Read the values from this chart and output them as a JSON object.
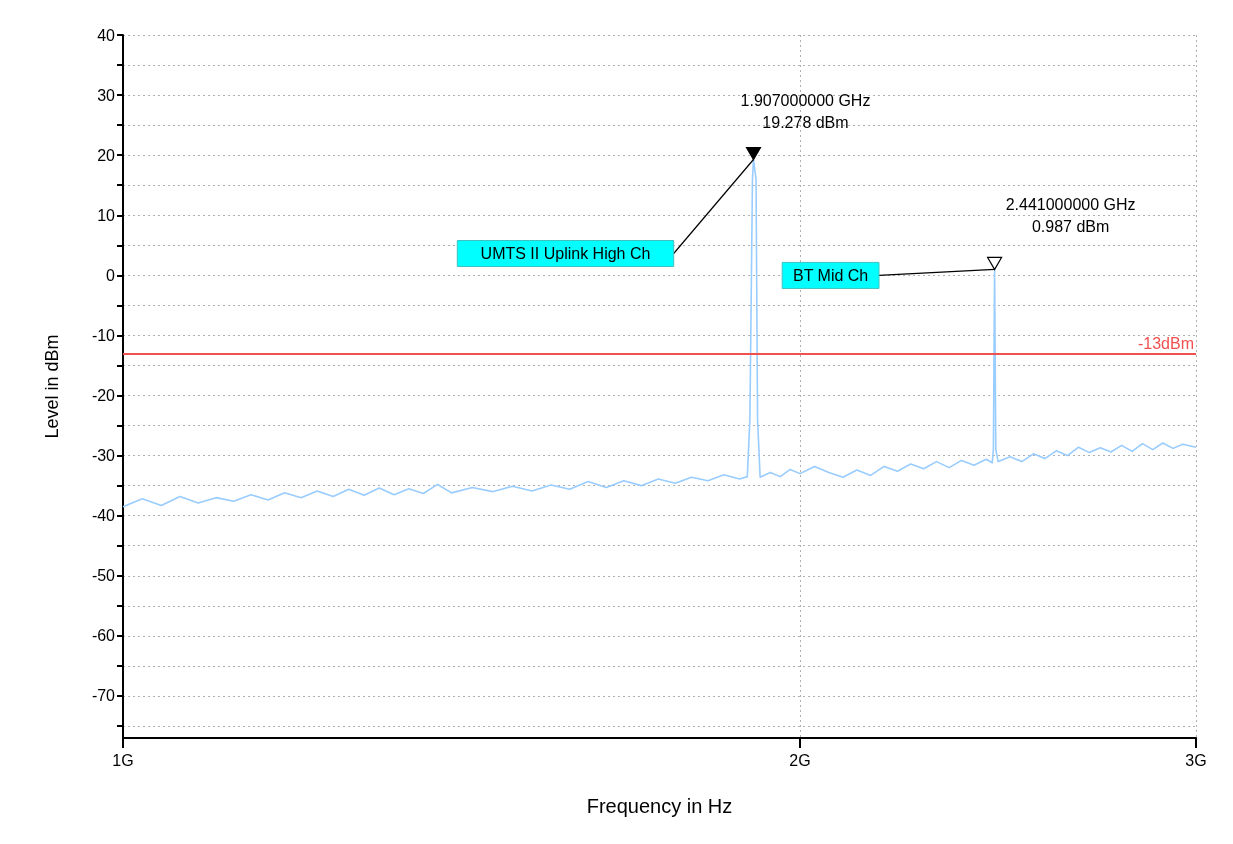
{
  "chart_data": {
    "type": "line",
    "xlabel": "Frequency in Hz",
    "ylabel": "Level in dBm",
    "log": "x",
    "xlim": [
      1,
      3
    ],
    "xticks": [
      {
        "value": 1,
        "label": "1G"
      },
      {
        "value": 2,
        "label": "2G"
      },
      {
        "value": 3,
        "label": "3G"
      }
    ],
    "ylim": [
      -77,
      40
    ],
    "yticks": [
      {
        "value": -75,
        "label": null
      },
      -70,
      {
        "value": -65,
        "label": null
      },
      -60,
      {
        "value": -55,
        "label": null
      },
      -50,
      {
        "value": -45,
        "label": null
      },
      -40,
      {
        "value": -35,
        "label": null
      },
      -30,
      {
        "value": -25,
        "label": null
      },
      -20,
      {
        "value": -15,
        "label": null
      },
      -10,
      {
        "value": -5,
        "label": null
      },
      0,
      {
        "value": 5,
        "label": null
      },
      10,
      {
        "value": 15,
        "label": null
      },
      20,
      {
        "value": 25,
        "label": null
      },
      30,
      {
        "value": 35,
        "label": null
      },
      40
    ],
    "grid": true,
    "marker": "none",
    "line_style": "solid",
    "series": [
      {
        "color": "#99ccff",
        "x": [
          1.0,
          1.02,
          1.04,
          1.06,
          1.08,
          1.1,
          1.12,
          1.14,
          1.16,
          1.18,
          1.2,
          1.22,
          1.24,
          1.26,
          1.28,
          1.3,
          1.32,
          1.34,
          1.36,
          1.38,
          1.4,
          1.43,
          1.46,
          1.49,
          1.52,
          1.55,
          1.58,
          1.61,
          1.64,
          1.67,
          1.7,
          1.73,
          1.76,
          1.79,
          1.82,
          1.85,
          1.88,
          1.895,
          1.9,
          1.905,
          1.907,
          1.912,
          1.915,
          1.92,
          1.94,
          1.96,
          1.98,
          2.0,
          2.03,
          2.06,
          2.09,
          2.12,
          2.15,
          2.18,
          2.21,
          2.24,
          2.27,
          2.3,
          2.33,
          2.36,
          2.39,
          2.42,
          2.435,
          2.438,
          2.441,
          2.444,
          2.45,
          2.48,
          2.51,
          2.54,
          2.57,
          2.6,
          2.63,
          2.66,
          2.69,
          2.72,
          2.75,
          2.78,
          2.81,
          2.84,
          2.87,
          2.9,
          2.93,
          2.96,
          3.0
        ],
        "values": [
          -38.5,
          -37.2,
          -38.3,
          -36.8,
          -37.9,
          -37.0,
          -37.6,
          -36.5,
          -37.4,
          -36.2,
          -37.0,
          -35.9,
          -36.8,
          -35.6,
          -36.6,
          -35.4,
          -36.5,
          -35.5,
          -36.3,
          -34.8,
          -36.2,
          -35.3,
          -36.0,
          -35.1,
          -35.9,
          -34.9,
          -35.6,
          -34.3,
          -35.3,
          -34.2,
          -35.0,
          -33.9,
          -34.6,
          -33.6,
          -34.2,
          -33.2,
          -33.9,
          -33.5,
          -24.0,
          16.0,
          19.278,
          16.0,
          -24.0,
          -33.6,
          -32.8,
          -33.5,
          -32.3,
          -33.0,
          -31.8,
          -32.8,
          -33.6,
          -32.4,
          -33.3,
          -31.8,
          -32.6,
          -31.4,
          -32.2,
          -31.0,
          -32.0,
          -30.8,
          -31.6,
          -30.6,
          -31.2,
          -29.0,
          0.987,
          -29.0,
          -31.0,
          -30.2,
          -31.0,
          -29.7,
          -30.5,
          -29.2,
          -30.0,
          -28.6,
          -29.5,
          -28.7,
          -29.4,
          -28.3,
          -29.3,
          -28.0,
          -29.0,
          -27.9,
          -28.8,
          -28.1,
          -28.6
        ]
      }
    ],
    "ref_lines": [
      {
        "axis": "y",
        "value": -13,
        "label": "-13dBm",
        "color": "#f05050"
      }
    ],
    "annotations": [
      {
        "text": "1.907000000 GHz\n19.278 dBm",
        "x": 1.907,
        "y": 19.278
      },
      {
        "text": "2.441000000 GHz\n0.987 dBm",
        "x": 2.441,
        "y": 0.987
      },
      "UMTS II Uplink High Ch",
      "BT Mid Ch"
    ]
  }
}
